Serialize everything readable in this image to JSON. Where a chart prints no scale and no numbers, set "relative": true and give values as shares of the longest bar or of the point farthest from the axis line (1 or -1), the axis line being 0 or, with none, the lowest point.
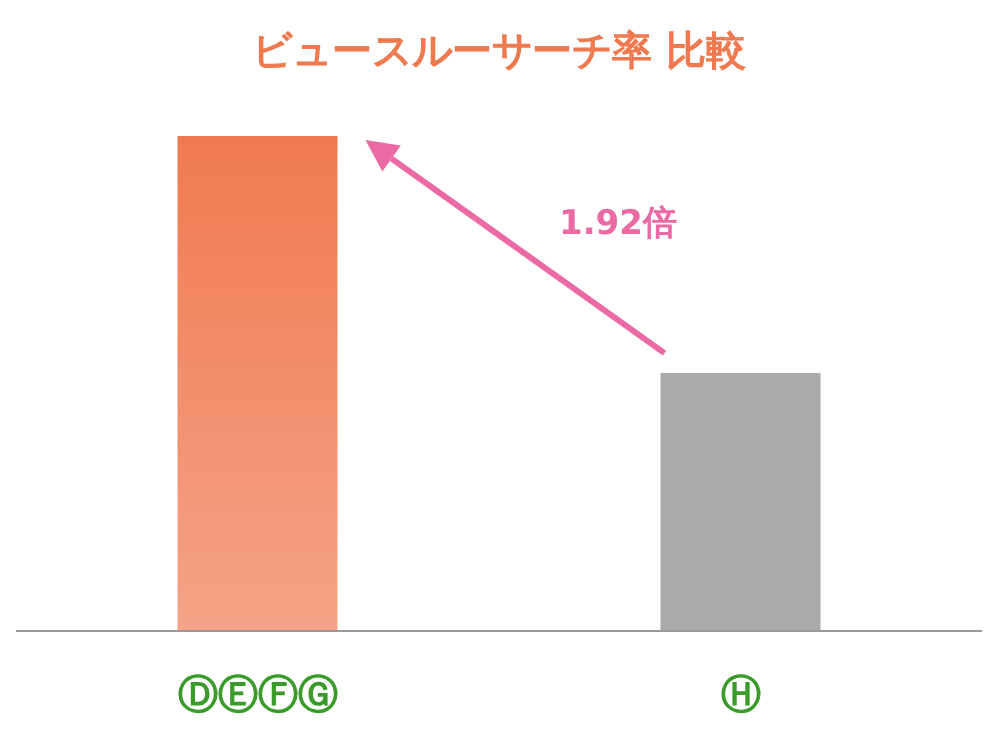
{
  "chart_data": {
    "type": "bar",
    "title": "ビュースルーサーチ率 比較",
    "categories": [
      "ⒹⒺⒻⒼ",
      "Ⓗ"
    ],
    "values": [
      1,
      0.52
    ],
    "colors": [
      "#f07a50",
      "#aaaaaa"
    ],
    "relative": true,
    "annotations": [
      "1.92倍"
    ]
  }
}
